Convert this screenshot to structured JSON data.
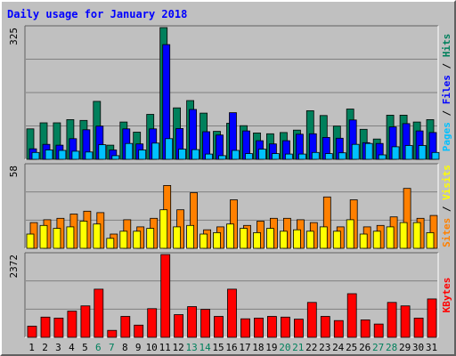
{
  "title": "Daily usage for January 2018",
  "colors": {
    "hits": "#00805c",
    "files": "#0000ff",
    "pages": "#00c0ff",
    "visits": "#ff8000",
    "sites": "#ffff00",
    "kbytes": "#ff0000",
    "title": "#0000ff",
    "weekend_day": "#00805c",
    "weekday_day": "#000000",
    "panel_bg": "#c0c0c0"
  },
  "chart_data": [
    {
      "type": "bar",
      "panel": "hits-files-pages",
      "ylabel_max": "325",
      "ylim": [
        0,
        325
      ],
      "legend": [
        "Pages",
        "Files",
        "Hits"
      ],
      "series": [
        {
          "name": "Hits",
          "values": [
            75,
            90,
            90,
            98,
            96,
            143,
            35,
            92,
            67,
            111,
            325,
            127,
            145,
            114,
            69,
            89,
            83,
            65,
            63,
            66,
            72,
            120,
            108,
            82,
            124,
            74,
            50,
            109,
            109,
            92,
            98
          ]
        },
        {
          "name": "Files",
          "values": [
            26,
            37,
            35,
            51,
            73,
            82,
            23,
            75,
            38,
            75,
            283,
            76,
            123,
            68,
            60,
            115,
            70,
            46,
            38,
            46,
            62,
            63,
            54,
            52,
            97,
            41,
            39,
            80,
            88,
            70,
            66
          ]
        },
        {
          "name": "Pages",
          "values": [
            17,
            23,
            22,
            20,
            18,
            36,
            9,
            39,
            23,
            40,
            51,
            25,
            24,
            13,
            9,
            22,
            14,
            25,
            14,
            13,
            13,
            17,
            14,
            16,
            37,
            39,
            11,
            31,
            34,
            34,
            17
          ]
        }
      ]
    },
    {
      "type": "bar",
      "panel": "visits-sites",
      "ylabel_max": "58",
      "ylim": [
        0,
        58
      ],
      "legend": [
        "Sites",
        "Visits"
      ],
      "series": [
        {
          "name": "Visits",
          "values": [
            18,
            20,
            21,
            24,
            26,
            25,
            10,
            20,
            15,
            21,
            44,
            27,
            39,
            13,
            15,
            34,
            16,
            19,
            21,
            21,
            20,
            18,
            36,
            15,
            34,
            15,
            16,
            22,
            42,
            21,
            23
          ]
        },
        {
          "name": "Sites",
          "values": [
            10,
            16,
            14,
            15,
            19,
            17,
            7,
            12,
            12,
            14,
            27,
            15,
            16,
            10,
            11,
            17,
            14,
            11,
            14,
            12,
            13,
            12,
            15,
            12,
            20,
            10,
            12,
            15,
            18,
            18,
            11
          ]
        }
      ]
    },
    {
      "type": "bar",
      "panel": "kbytes",
      "ylabel_max": "2372",
      "ylim": [
        0,
        2372
      ],
      "legend": [
        "KBytes"
      ],
      "series": [
        {
          "name": "KBytes",
          "values": [
            320,
            580,
            550,
            750,
            900,
            1380,
            200,
            600,
            350,
            820,
            2372,
            650,
            880,
            800,
            600,
            1380,
            530,
            550,
            600,
            580,
            520,
            1000,
            600,
            480,
            1250,
            500,
            380,
            1000,
            900,
            550,
            1100
          ]
        }
      ]
    }
  ],
  "x_labels": [
    "1",
    "2",
    "3",
    "4",
    "5",
    "6",
    "7",
    "8",
    "9",
    "10",
    "11",
    "12",
    "13",
    "14",
    "15",
    "16",
    "17",
    "18",
    "19",
    "20",
    "21",
    "22",
    "23",
    "24",
    "25",
    "26",
    "27",
    "28",
    "29",
    "30",
    "31"
  ],
  "weekend_days": [
    6,
    7,
    13,
    14,
    20,
    21,
    27,
    28
  ]
}
